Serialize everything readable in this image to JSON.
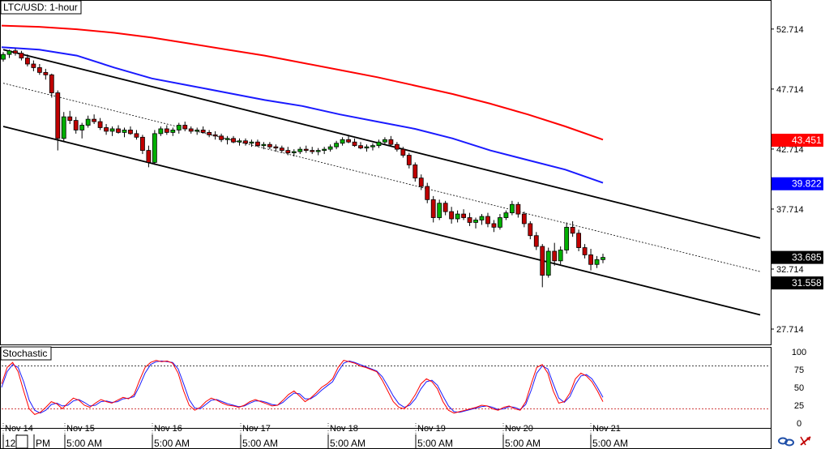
{
  "chart_data": {
    "type": "candlestick",
    "title": "LTC/USD: 1-hour",
    "price_axis": {
      "min": 26.5,
      "max": 55.0,
      "ticks": [
        "52.714",
        "47.714",
        "42.714",
        "37.714",
        "32.714",
        "27.714"
      ],
      "tick_values": [
        52.714,
        47.714,
        42.714,
        37.714,
        32.714,
        27.714
      ]
    },
    "price_tags": [
      {
        "label": "43.451",
        "value": 43.451,
        "color": "#ff0000",
        "text_color": "#ffffff"
      },
      {
        "label": "39.822",
        "value": 39.822,
        "color": "#0000ff",
        "text_color": "#ffffff"
      },
      {
        "label": "33.685",
        "value": 33.685,
        "color": "#000000",
        "text_color": "#ffffff",
        "marker": "▼"
      },
      {
        "label": "31.558",
        "value": 31.558,
        "color": "#000000",
        "text_color": "#ffffff"
      }
    ],
    "date_labels": [
      "Nov 14",
      "Nov 15",
      "Nov 16",
      "Nov 17",
      "Nov 18",
      "Nov 19",
      "Nov 20",
      "Nov 21"
    ],
    "time_labels": [
      "12",
      "PM",
      "5:00 AM",
      "5:00 AM",
      "5:00 AM",
      "5:00 AM",
      "5:00 AM",
      "5:00 AM",
      "5:00 AM"
    ],
    "x_range": [
      0,
      200
    ],
    "candles": [
      [
        50.2,
        50.8,
        50.0,
        50.6
      ],
      [
        50.6,
        51.0,
        50.3,
        50.9
      ],
      [
        50.9,
        51.1,
        50.5,
        50.7
      ],
      [
        50.7,
        50.9,
        50.1,
        50.3
      ],
      [
        50.3,
        50.6,
        49.6,
        49.8
      ],
      [
        49.8,
        50.1,
        49.2,
        49.5
      ],
      [
        49.5,
        49.8,
        48.9,
        49.1
      ],
      [
        49.1,
        49.4,
        48.5,
        48.9
      ],
      [
        48.9,
        49.0,
        47.0,
        47.4
      ],
      [
        47.4,
        47.6,
        42.6,
        43.6
      ],
      [
        43.6,
        45.8,
        43.3,
        45.4
      ],
      [
        45.4,
        45.9,
        44.8,
        45.1
      ],
      [
        45.1,
        45.4,
        44.0,
        44.3
      ],
      [
        44.3,
        44.9,
        43.6,
        44.7
      ],
      [
        44.7,
        45.5,
        44.5,
        45.2
      ],
      [
        45.2,
        45.6,
        44.8,
        45.0
      ],
      [
        45.0,
        45.3,
        44.3,
        44.5
      ],
      [
        44.5,
        44.8,
        43.9,
        44.2
      ],
      [
        44.2,
        44.6,
        43.8,
        44.4
      ],
      [
        44.4,
        44.7,
        44.0,
        44.1
      ],
      [
        44.1,
        44.5,
        43.7,
        44.3
      ],
      [
        44.3,
        44.6,
        43.9,
        44.0
      ],
      [
        44.0,
        44.3,
        43.5,
        43.7
      ],
      [
        43.7,
        43.9,
        42.3,
        42.6
      ],
      [
        42.6,
        43.0,
        41.2,
        41.6
      ],
      [
        41.6,
        44.3,
        41.4,
        44.0
      ],
      [
        44.0,
        44.6,
        43.8,
        44.4
      ],
      [
        44.4,
        44.7,
        43.9,
        44.1
      ],
      [
        44.1,
        44.5,
        43.8,
        44.3
      ],
      [
        44.3,
        44.9,
        44.0,
        44.7
      ],
      [
        44.7,
        45.0,
        44.2,
        44.4
      ],
      [
        44.4,
        44.6,
        44.0,
        44.2
      ],
      [
        44.2,
        44.5,
        43.9,
        44.3
      ],
      [
        44.3,
        44.6,
        44.0,
        44.1
      ],
      [
        44.1,
        44.3,
        43.7,
        43.9
      ],
      [
        43.9,
        44.2,
        43.5,
        43.8
      ],
      [
        43.8,
        44.0,
        43.3,
        43.5
      ],
      [
        43.5,
        43.8,
        43.1,
        43.6
      ],
      [
        43.6,
        43.8,
        43.2,
        43.3
      ],
      [
        43.3,
        43.6,
        43.0,
        43.4
      ],
      [
        43.4,
        43.6,
        43.0,
        43.2
      ],
      [
        43.2,
        43.5,
        42.9,
        43.3
      ],
      [
        43.3,
        43.5,
        42.9,
        43.0
      ],
      [
        43.0,
        43.3,
        42.7,
        43.1
      ],
      [
        43.1,
        43.3,
        42.7,
        42.9
      ],
      [
        42.9,
        43.1,
        42.5,
        42.8
      ],
      [
        42.8,
        43.0,
        42.4,
        42.6
      ],
      [
        42.6,
        42.9,
        42.2,
        42.4
      ],
      [
        42.4,
        42.7,
        42.1,
        42.5
      ],
      [
        42.5,
        42.9,
        42.3,
        42.7
      ],
      [
        42.7,
        43.0,
        42.4,
        42.6
      ],
      [
        42.6,
        42.9,
        42.3,
        42.5
      ],
      [
        42.5,
        42.8,
        42.2,
        42.6
      ],
      [
        42.6,
        42.9,
        42.3,
        42.7
      ],
      [
        42.7,
        43.1,
        42.5,
        42.9
      ],
      [
        42.9,
        43.4,
        42.7,
        43.2
      ],
      [
        43.2,
        43.7,
        43.0,
        43.5
      ],
      [
        43.5,
        43.9,
        43.2,
        43.3
      ],
      [
        43.3,
        43.6,
        42.9,
        43.0
      ],
      [
        43.0,
        43.3,
        42.7,
        42.8
      ],
      [
        42.8,
        43.1,
        42.5,
        42.9
      ],
      [
        42.9,
        43.2,
        42.6,
        43.0
      ],
      [
        43.0,
        43.5,
        42.8,
        43.3
      ],
      [
        43.3,
        43.7,
        43.1,
        43.5
      ],
      [
        43.5,
        43.8,
        42.9,
        43.1
      ],
      [
        43.1,
        43.3,
        42.5,
        42.7
      ],
      [
        42.7,
        42.9,
        42.0,
        42.2
      ],
      [
        42.2,
        42.4,
        41.1,
        41.4
      ],
      [
        41.4,
        41.6,
        40.0,
        40.3
      ],
      [
        40.3,
        40.6,
        39.3,
        39.6
      ],
      [
        39.6,
        39.9,
        38.2,
        38.5
      ],
      [
        38.5,
        38.8,
        36.6,
        37.0
      ],
      [
        37.0,
        38.5,
        36.8,
        38.2
      ],
      [
        38.2,
        38.4,
        37.2,
        37.5
      ],
      [
        37.5,
        37.9,
        36.5,
        36.9
      ],
      [
        36.9,
        37.6,
        36.6,
        37.3
      ],
      [
        37.3,
        37.7,
        36.8,
        37.0
      ],
      [
        37.0,
        37.4,
        36.3,
        36.6
      ],
      [
        36.6,
        37.0,
        36.1,
        36.8
      ],
      [
        36.8,
        37.3,
        36.4,
        37.1
      ],
      [
        37.1,
        37.4,
        36.2,
        36.5
      ],
      [
        36.5,
        36.8,
        35.8,
        36.2
      ],
      [
        36.2,
        37.3,
        36.0,
        37.0
      ],
      [
        37.0,
        37.6,
        36.8,
        37.4
      ],
      [
        37.4,
        38.4,
        37.2,
        38.1
      ],
      [
        38.1,
        38.3,
        37.0,
        37.3
      ],
      [
        37.3,
        37.5,
        36.2,
        36.5
      ],
      [
        36.5,
        36.7,
        35.2,
        35.5
      ],
      [
        35.5,
        35.8,
        34.3,
        34.6
      ],
      [
        34.6,
        34.8,
        31.2,
        32.2
      ],
      [
        32.2,
        34.5,
        32.0,
        34.2
      ],
      [
        34.2,
        34.9,
        33.0,
        33.4
      ],
      [
        33.4,
        34.6,
        33.1,
        34.3
      ],
      [
        34.3,
        36.6,
        34.0,
        36.2
      ],
      [
        36.2,
        36.7,
        35.4,
        35.7
      ],
      [
        35.7,
        36.0,
        34.2,
        34.5
      ],
      [
        34.5,
        34.8,
        33.6,
        33.9
      ],
      [
        33.9,
        34.4,
        32.6,
        33.1
      ],
      [
        33.1,
        33.8,
        32.8,
        33.5
      ],
      [
        33.5,
        34.0,
        33.2,
        33.685
      ]
    ],
    "ma_red": [
      53.0,
      52.9,
      52.7,
      52.4,
      52.0,
      51.5,
      51.0,
      50.5,
      49.9,
      49.3,
      48.7,
      48.0,
      47.3,
      46.5,
      45.6,
      44.6,
      43.5
    ],
    "ma_blue": [
      51.2,
      51.0,
      50.5,
      49.5,
      48.6,
      48.0,
      47.4,
      46.8,
      46.3,
      45.6,
      45.0,
      44.4,
      43.6,
      42.6,
      41.8,
      41.0,
      39.9
    ],
    "channel": {
      "upper": [
        [
          0,
          51.0
        ],
        [
          200,
          35.3
        ]
      ],
      "middle": [
        [
          0,
          48.2
        ],
        [
          200,
          32.5
        ]
      ],
      "lower": [
        [
          0,
          44.6
        ],
        [
          200,
          28.9
        ]
      ]
    },
    "stochastic": {
      "label": "Stochastic",
      "ticks": [
        "100",
        "75",
        "50",
        "25",
        "0"
      ],
      "tick_values": [
        100,
        75,
        50,
        25,
        0
      ],
      "levels": [
        80,
        20
      ],
      "k": [
        55,
        78,
        85,
        72,
        45,
        20,
        12,
        15,
        22,
        30,
        27,
        20,
        28,
        35,
        32,
        25,
        22,
        28,
        33,
        30,
        28,
        32,
        36,
        34,
        40,
        60,
        78,
        85,
        88,
        86,
        87,
        84,
        70,
        45,
        25,
        18,
        22,
        30,
        35,
        32,
        28,
        25,
        24,
        22,
        25,
        30,
        33,
        30,
        27,
        24,
        25,
        32,
        40,
        45,
        38,
        30,
        35,
        42,
        50,
        55,
        62,
        78,
        88,
        86,
        84,
        80,
        78,
        75,
        72,
        60,
        45,
        30,
        22,
        20,
        28,
        40,
        55,
        62,
        58,
        48,
        30,
        18,
        14,
        16,
        18,
        20,
        22,
        25,
        24,
        20,
        18,
        22,
        24,
        20,
        18,
        30,
        55,
        78,
        82,
        70,
        45,
        28,
        30,
        42,
        62,
        70,
        66,
        58,
        45,
        30
      ],
      "d": [
        50,
        72,
        82,
        78,
        58,
        32,
        18,
        14,
        18,
        26,
        28,
        24,
        25,
        31,
        33,
        29,
        24,
        25,
        30,
        31,
        29,
        30,
        34,
        35,
        37,
        52,
        70,
        82,
        86,
        87,
        86,
        85,
        76,
        55,
        33,
        21,
        20,
        26,
        32,
        33,
        30,
        27,
        25,
        23,
        24,
        28,
        31,
        31,
        29,
        26,
        25,
        29,
        36,
        42,
        41,
        34,
        34,
        39,
        46,
        52,
        58,
        72,
        84,
        87,
        85,
        82,
        79,
        76,
        73,
        65,
        52,
        38,
        27,
        22,
        25,
        34,
        48,
        58,
        60,
        53,
        38,
        24,
        16,
        15,
        17,
        19,
        21,
        23,
        24,
        22,
        19,
        20,
        23,
        22,
        19,
        26,
        46,
        70,
        80,
        76,
        55,
        35,
        29,
        37,
        54,
        66,
        68,
        62,
        50,
        36
      ]
    }
  }
}
